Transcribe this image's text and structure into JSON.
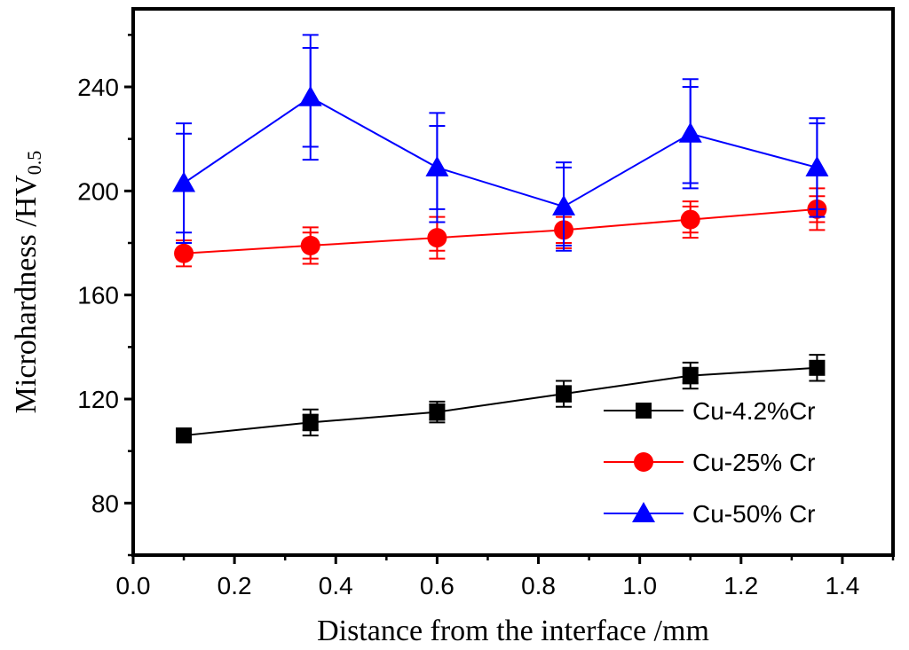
{
  "chart_data": {
    "type": "line",
    "title": "",
    "xlabel": "Distance from the interface /mm",
    "ylabel": "Microhardness /HV",
    "ylabel_sub": "0.5",
    "xlim": [
      0.0,
      1.5
    ],
    "ylim": [
      60,
      270
    ],
    "x_ticks": [
      "0.0",
      "0.2",
      "0.4",
      "0.6",
      "0.8",
      "1.0",
      "1.2",
      "1.4"
    ],
    "x_tick_values": [
      0.0,
      0.2,
      0.4,
      0.6,
      0.8,
      1.0,
      1.2,
      1.4
    ],
    "y_ticks": [
      "80",
      "120",
      "160",
      "200",
      "240"
    ],
    "y_tick_values": [
      80,
      120,
      160,
      200,
      240
    ],
    "grid": false,
    "legend_position": "bottom-right",
    "x": [
      0.1,
      0.35,
      0.6,
      0.85,
      1.1,
      1.35
    ],
    "series": [
      {
        "name": "Cu-4.2%Cr",
        "marker": "square",
        "color": "#000000",
        "values": [
          106,
          111,
          115,
          122,
          129,
          132
        ],
        "errors": [
          [
            [
              104,
              108
            ]
          ],
          [
            [
              106,
              116
            ],
            [
              108,
              114
            ]
          ],
          [
            [
              111,
              119
            ],
            [
              112,
              118
            ]
          ],
          [
            [
              117,
              127
            ],
            [
              119,
              125
            ]
          ],
          [
            [
              124,
              134
            ],
            [
              126,
              132
            ]
          ],
          [
            [
              127,
              137
            ]
          ]
        ]
      },
      {
        "name": "Cu-25% Cr",
        "marker": "circle",
        "color": "#ff0000",
        "values": [
          176,
          179,
          182,
          185,
          189,
          193
        ],
        "errors": [
          [
            [
              171,
              181
            ]
          ],
          [
            [
              172,
              186
            ],
            [
              174,
              184
            ]
          ],
          [
            [
              174,
              190
            ],
            [
              177,
              188
            ]
          ],
          [
            [
              178,
              192
            ],
            [
              180,
              190
            ]
          ],
          [
            [
              182,
              196
            ],
            [
              184,
              194
            ]
          ],
          [
            [
              185,
              201
            ],
            [
              188,
              198
            ]
          ]
        ]
      },
      {
        "name": "Cu-50% Cr",
        "marker": "triangle",
        "color": "#0000ff",
        "values": [
          203,
          236,
          209,
          194,
          222,
          209
        ],
        "errors": [
          [
            [
              180,
              226
            ],
            [
              184,
              222
            ]
          ],
          [
            [
              212,
              260
            ],
            [
              217,
              255
            ]
          ],
          [
            [
              188,
              230
            ],
            [
              193,
              225
            ]
          ],
          [
            [
              177,
              211
            ],
            [
              179,
              209
            ]
          ],
          [
            [
              201,
              243
            ],
            [
              203,
              240
            ]
          ],
          [
            [
              190,
              228
            ],
            [
              193,
              226
            ]
          ]
        ]
      }
    ]
  }
}
